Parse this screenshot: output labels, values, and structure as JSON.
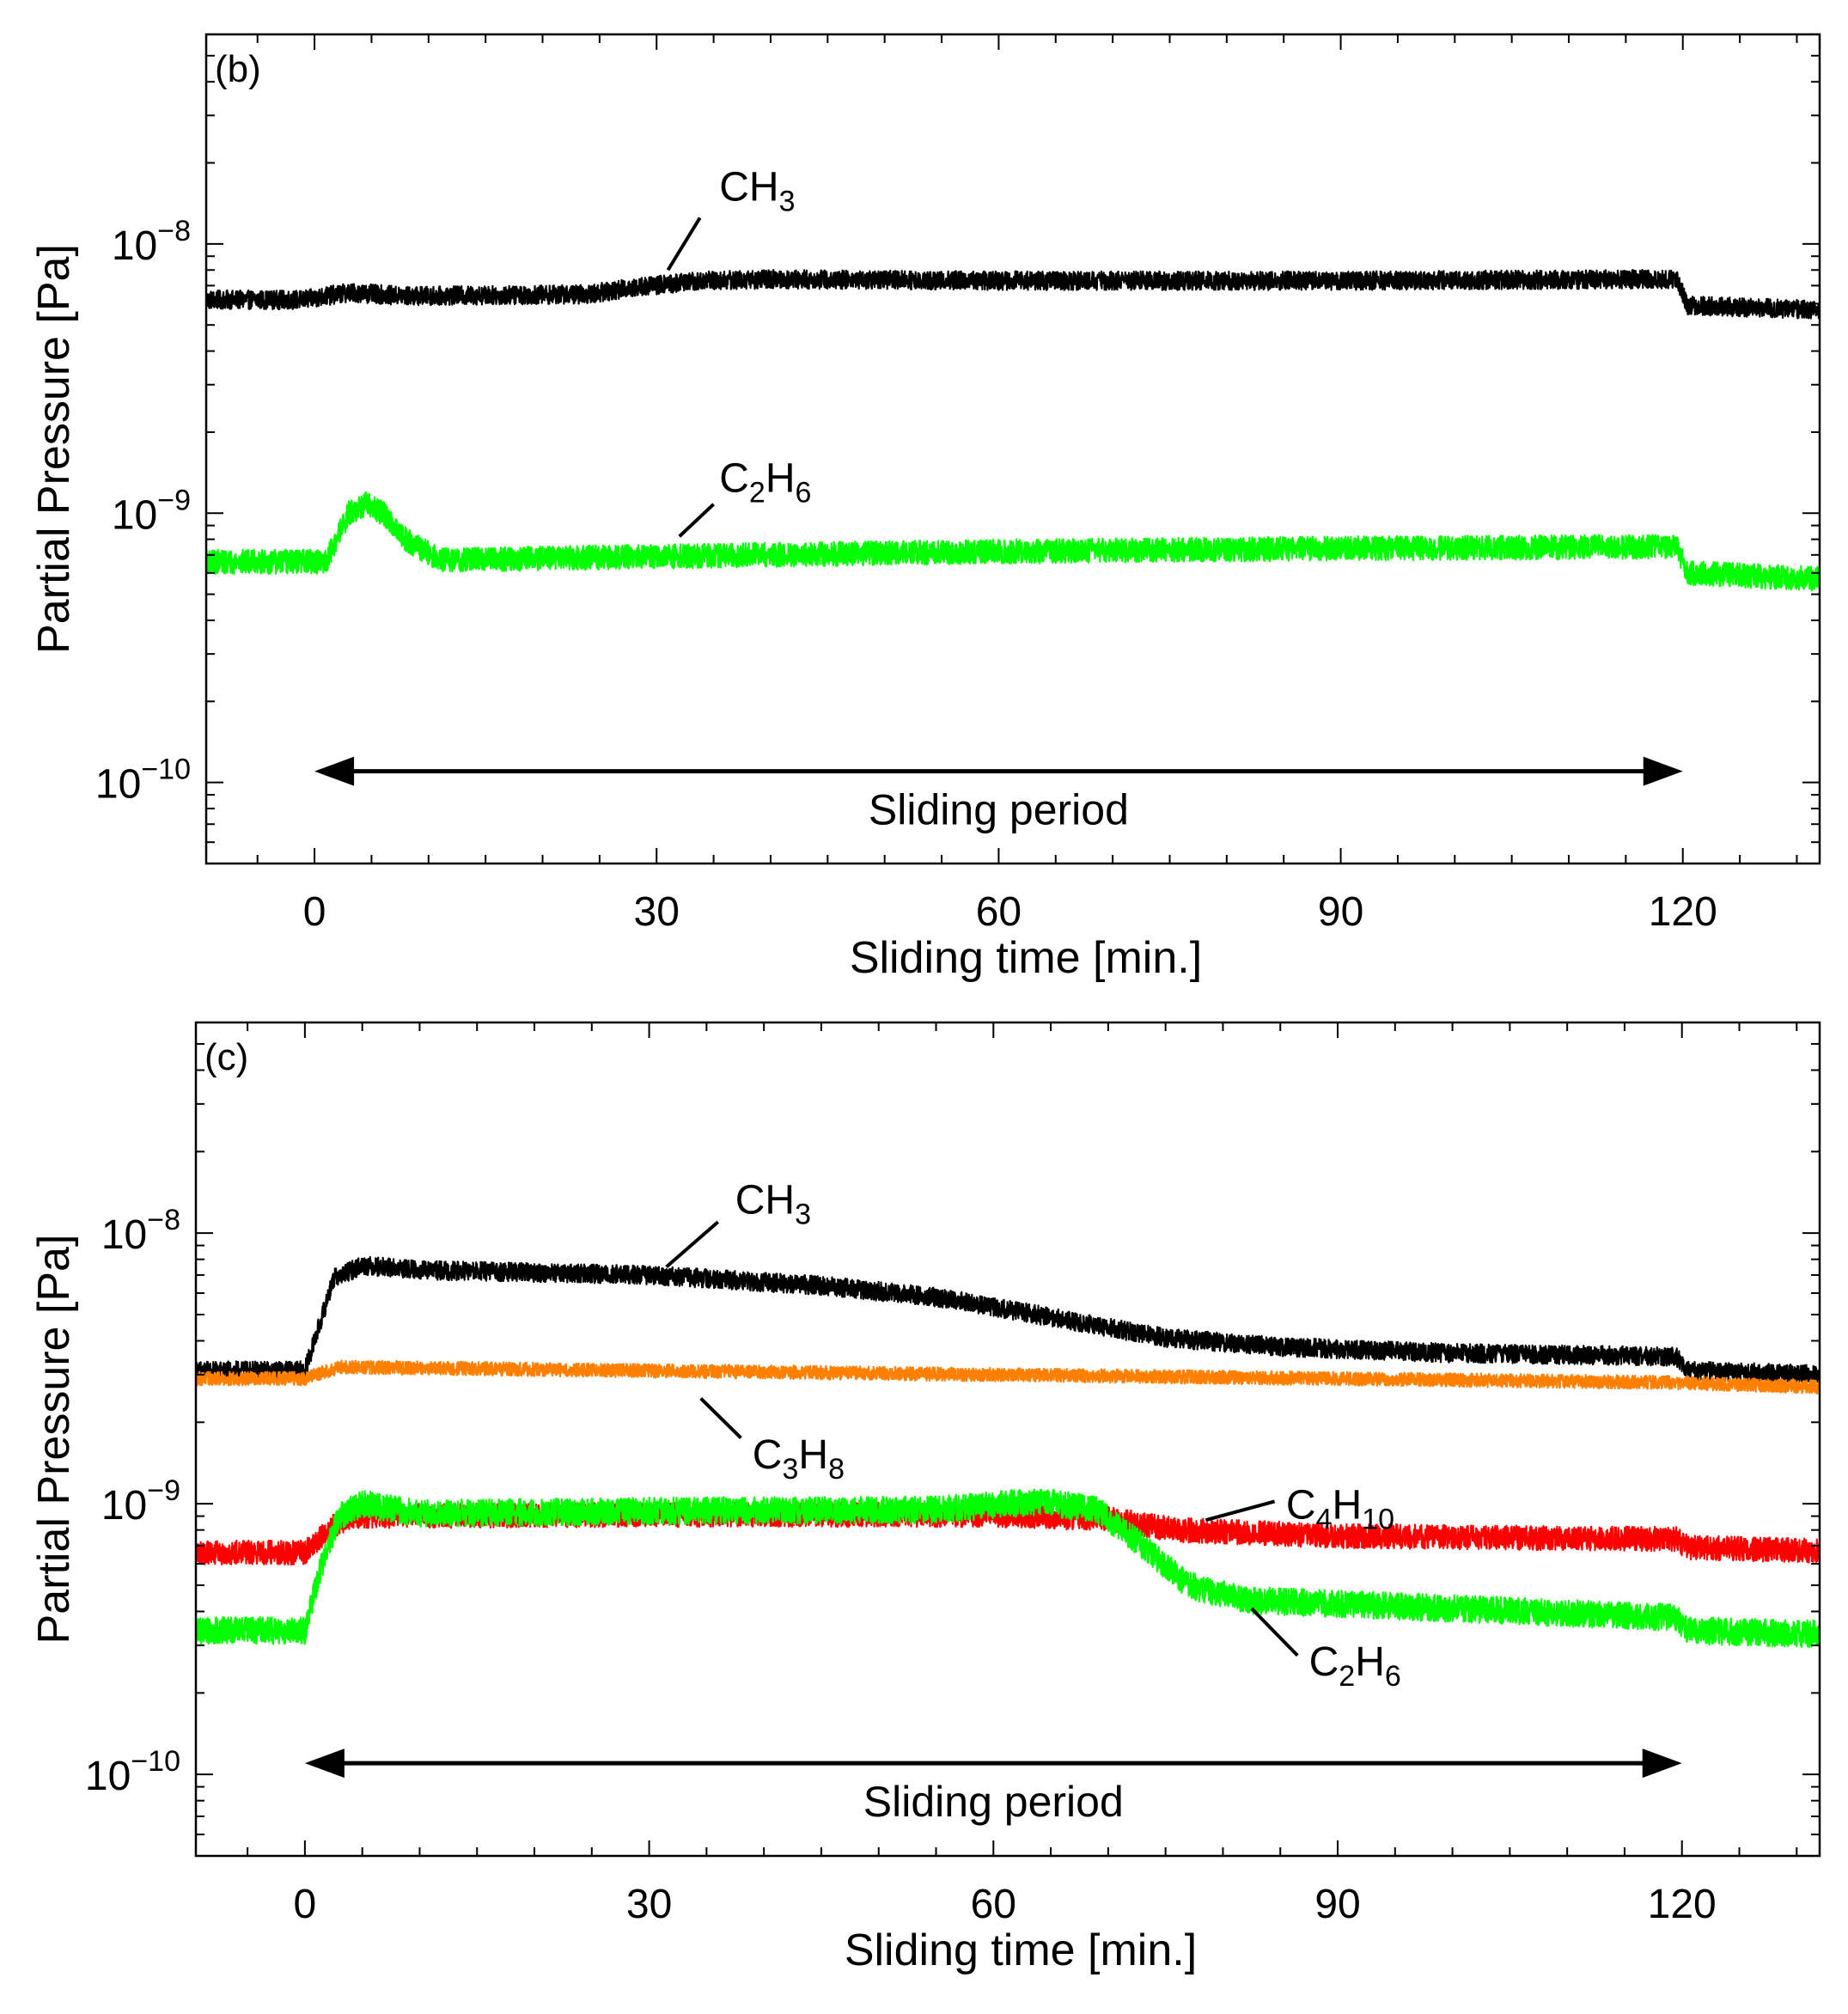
{
  "figure": {
    "panels": [
      "panel_b",
      "panel_c"
    ]
  },
  "chart_data": [
    {
      "id": "panel_b",
      "type": "line",
      "panel_label": "(b)",
      "xlabel": "Sliding time [min.]",
      "ylabel": "Partial Pressure [Pa]",
      "yscale": "log",
      "xlim": [
        -9.5,
        132
      ],
      "ylim": [
        5e-11,
        6e-08
      ],
      "xticks": [
        0,
        30,
        60,
        90,
        120
      ],
      "xtick_labels": [
        "0",
        "30",
        "60",
        "90",
        "120"
      ],
      "ytick_labels": [
        {
          "exp": -8,
          "base": "10",
          "sup": "−8"
        },
        {
          "exp": -9,
          "base": "10",
          "sup": "−9"
        },
        {
          "exp": -10,
          "base": "10",
          "sup": "−10"
        }
      ],
      "arrow": {
        "x_start": 0,
        "x_end": 120,
        "y": 1.1e-10,
        "label": "Sliding period"
      },
      "series": [
        {
          "name": "CH3",
          "label_base": "CH",
          "label_sub": "3",
          "color": "#000000",
          "noise": 0.035,
          "x": [
            -9.5,
            -1,
            3,
            8,
            24,
            28,
            34,
            40,
            60,
            90,
            119.5,
            120.4,
            132
          ],
          "values": [
            6.2e-09,
            6.2e-09,
            6.6e-09,
            6.4e-09,
            6.5e-09,
            6.9e-09,
            7.3e-09,
            7.4e-09,
            7.3e-09,
            7.3e-09,
            7.4e-09,
            5.9e-09,
            5.7e-09
          ],
          "annotation": {
            "text_x": 35.5,
            "text_y": 1.45e-08,
            "line_from": [
              33.8,
              1.25e-08
            ],
            "line_to": [
              31,
              8e-09
            ]
          }
        },
        {
          "name": "C2H6",
          "label_base": "C",
          "label_mid": "2",
          "label_base2": "H",
          "label_sub": "6",
          "color": "#00ff00",
          "noise": 0.045,
          "x": [
            -9.5,
            1,
            3,
            4.5,
            6,
            8,
            11,
            30,
            60,
            90,
            119.5,
            120.4,
            132
          ],
          "values": [
            6.6e-10,
            6.6e-10,
            1e-09,
            1.08e-09,
            1e-09,
            8e-10,
            6.7e-10,
            6.9e-10,
            7.2e-10,
            7.4e-10,
            7.5e-10,
            6e-10,
            5.7e-10
          ],
          "annotation": {
            "text_x": 35.5,
            "text_y": 1.2e-09,
            "line_from": [
              35,
              1.08e-09
            ],
            "line_to": [
              32,
              8.2e-10
            ]
          }
        }
      ]
    },
    {
      "id": "panel_c",
      "type": "line",
      "panel_label": "(c)",
      "xlabel": "Sliding time [min.]",
      "ylabel": "Partial Pressure [Pa]",
      "yscale": "log",
      "xlim": [
        -9.5,
        132
      ],
      "ylim": [
        5e-11,
        6e-08
      ],
      "xticks": [
        0,
        30,
        60,
        90,
        120
      ],
      "xtick_labels": [
        "0",
        "30",
        "60",
        "90",
        "120"
      ],
      "ytick_labels": [
        {
          "exp": -8,
          "base": "10",
          "sup": "−8"
        },
        {
          "exp": -9,
          "base": "10",
          "sup": "−9"
        },
        {
          "exp": -10,
          "base": "10",
          "sup": "−10"
        }
      ],
      "arrow": {
        "x_start": 0,
        "x_end": 120,
        "y": 1.1e-10,
        "label": "Sliding period"
      },
      "series": [
        {
          "name": "CH3",
          "label_base": "CH",
          "label_sub": "3",
          "color": "#000000",
          "noise": 0.035,
          "x": [
            -9.5,
            0,
            1,
            2.5,
            5,
            10,
            30,
            45,
            55,
            65,
            75,
            85,
            100,
            119.5,
            120.5,
            132
          ],
          "values": [
            3.1e-09,
            3.1e-09,
            4.2e-09,
            6.8e-09,
            7.6e-09,
            7.3e-09,
            7e-09,
            6.4e-09,
            5.8e-09,
            4.9e-09,
            4.1e-09,
            3.8e-09,
            3.6e-09,
            3.5e-09,
            3.1e-09,
            3e-09
          ],
          "annotation": {
            "text_x": 37.5,
            "text_y": 1.18e-08,
            "line_from": [
              36,
              1.1e-08
            ],
            "line_to": [
              31.5,
              7.5e-09
            ]
          }
        },
        {
          "name": "C3H8",
          "label_base": "C",
          "label_mid": "3",
          "label_base2": "H",
          "label_sub": "8",
          "color": "#ff8000",
          "noise": 0.025,
          "x": [
            -9.5,
            0,
            3,
            30,
            60,
            90,
            120,
            132
          ],
          "values": [
            2.9e-09,
            2.9e-09,
            3.2e-09,
            3.1e-09,
            3e-09,
            2.9e-09,
            2.8e-09,
            2.7e-09
          ],
          "annotation": {
            "text_x": 39,
            "text_y": 1.35e-09,
            "line_from": [
              38,
              1.75e-09
            ],
            "line_to": [
              34.5,
              2.45e-09
            ]
          }
        },
        {
          "name": "C4H10",
          "label_base": "C",
          "label_mid": "4",
          "label_base2": "H",
          "label_sub": "10",
          "color": "#ff0000",
          "noise": 0.045,
          "x": [
            -9.5,
            0,
            2,
            4,
            30,
            60,
            70,
            76,
            90,
            119.5,
            120.5,
            132
          ],
          "values": [
            6.6e-10,
            6.6e-10,
            8e-10,
            9e-10,
            9.1e-10,
            9.1e-10,
            8.8e-10,
            8e-10,
            7.6e-10,
            7.4e-10,
            6.9e-10,
            6.7e-10
          ],
          "annotation": {
            "text_x": 85.5,
            "text_y": 8.8e-10,
            "line_from": [
              84.5,
              1.02e-09
            ],
            "line_to": [
              78.5,
              8.7e-10
            ]
          }
        },
        {
          "name": "C2H6",
          "label_base": "C",
          "label_mid": "2",
          "label_base2": "H",
          "label_sub": "6",
          "color": "#00ff00",
          "noise": 0.05,
          "x": [
            -9.5,
            0,
            1.5,
            3,
            5,
            10,
            30,
            55,
            64,
            69,
            73,
            77,
            82,
            100,
            119.5,
            120.5,
            132
          ],
          "values": [
            3.4e-10,
            3.4e-10,
            6e-10,
            9e-10,
            1e-09,
            9.2e-10,
            9.4e-10,
            9.5e-10,
            1.02e-09,
            9.5e-10,
            7e-10,
            5e-10,
            4.4e-10,
            4.1e-10,
            3.8e-10,
            3.4e-10,
            3.3e-10
          ],
          "annotation": {
            "text_x": 87.5,
            "text_y": 2.32e-10,
            "line_from": [
              86.5,
              2.75e-10
            ],
            "line_to": [
              82.5,
              4.1e-10
            ]
          }
        }
      ]
    }
  ]
}
